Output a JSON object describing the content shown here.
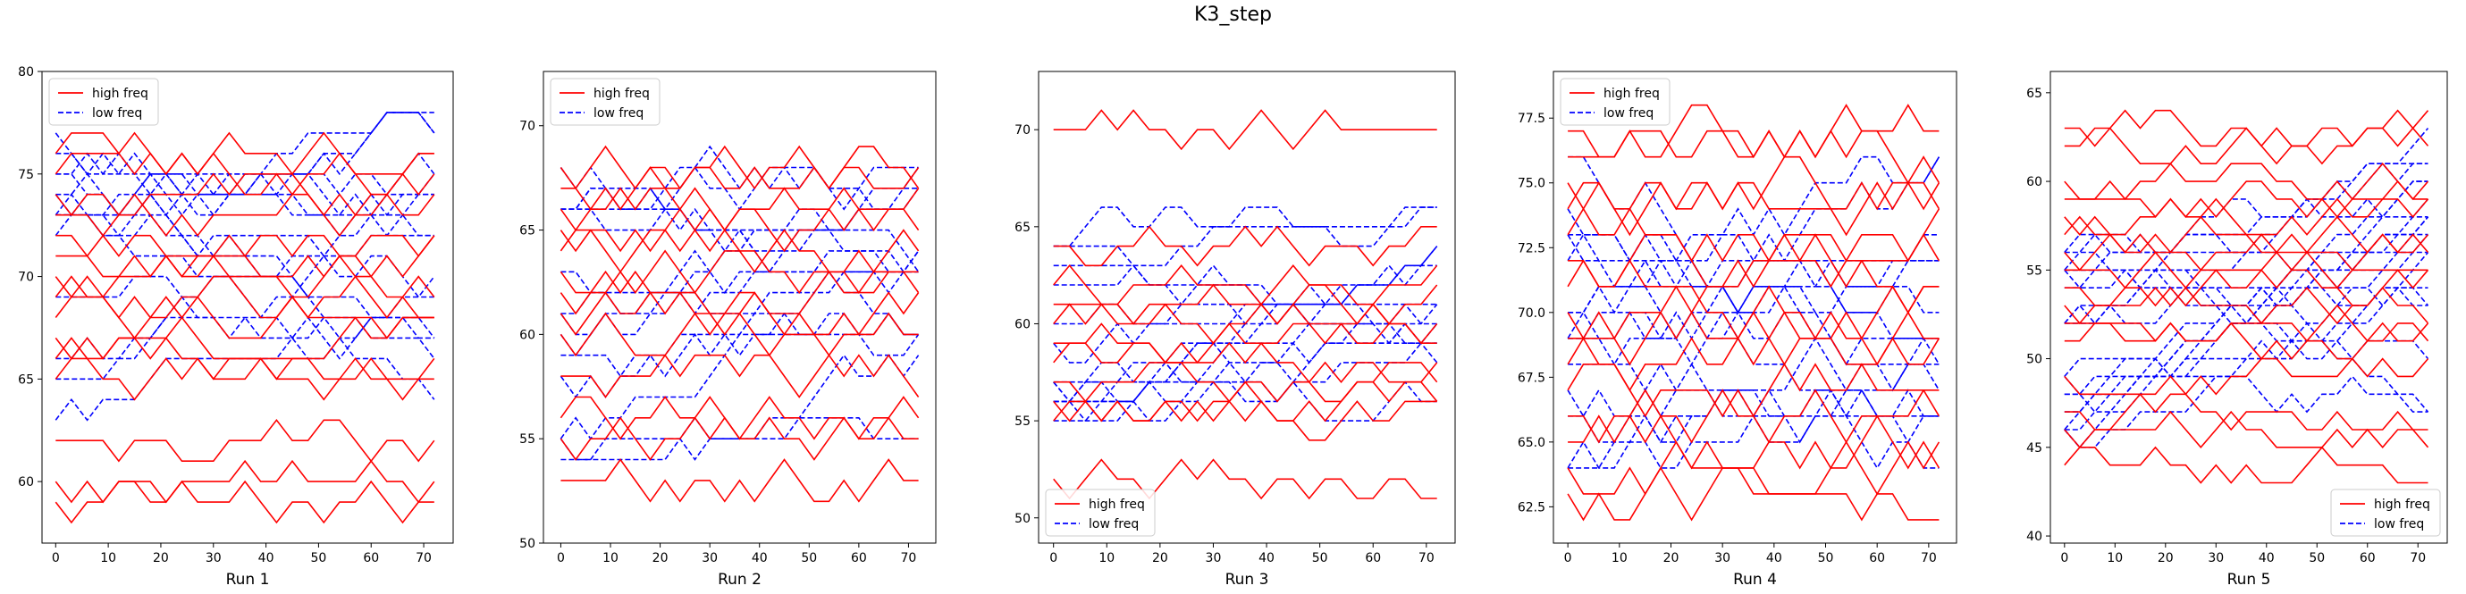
{
  "figure": {
    "title": "K3_step"
  },
  "chart_data": [
    {
      "type": "line",
      "xlabel": "Run 1",
      "xlim": [
        -2.6,
        75.6
      ],
      "ylim": [
        57.0,
        80.0
      ],
      "xticks": [
        0,
        10,
        20,
        30,
        40,
        50,
        60,
        70
      ],
      "yticks": [
        60,
        65,
        70,
        75,
        80
      ],
      "ytick_labels": [
        "60",
        "65",
        "70",
        "75",
        "80"
      ],
      "legend": {
        "loc": "upper-left",
        "entries": [
          {
            "label": "high freq",
            "color": "#ff0000",
            "style": "solid"
          },
          {
            "label": "low freq",
            "color": "#0000ff",
            "style": "dashed"
          }
        ]
      },
      "high_freq_levels": [
        59,
        60,
        62,
        65,
        66,
        67,
        68,
        69,
        70,
        71,
        72,
        73,
        74,
        75,
        76
      ],
      "low_freq_levels": [
        62,
        63,
        64,
        65,
        67,
        69,
        70,
        71,
        72,
        73,
        74,
        75,
        76,
        77,
        78
      ],
      "low_freq_start_range": [
        62,
        76
      ],
      "low_freq_end_range": [
        63,
        79
      ]
    },
    {
      "type": "line",
      "xlabel": "Run 2",
      "xlim": [
        -3.5,
        75.5
      ],
      "ylim": [
        50.0,
        72.6
      ],
      "xticks": [
        0,
        10,
        20,
        30,
        40,
        50,
        60,
        70
      ],
      "yticks": [
        50,
        55,
        60,
        65,
        70
      ],
      "ytick_labels": [
        "50",
        "55",
        "60",
        "65",
        "70"
      ],
      "legend": {
        "loc": "upper-left",
        "entries": [
          {
            "label": "high freq",
            "color": "#ff0000",
            "style": "solid"
          },
          {
            "label": "low freq",
            "color": "#0000ff",
            "style": "dashed"
          }
        ]
      },
      "high_freq_levels": [
        53,
        55,
        56,
        58,
        60,
        61,
        62,
        63,
        64,
        65,
        66,
        67,
        68
      ],
      "low_freq_levels": [
        52,
        55,
        57,
        59,
        61,
        62,
        63,
        64,
        65,
        66,
        67,
        68,
        69,
        70
      ],
      "low_freq_start_range": [
        54,
        68
      ],
      "low_freq_end_range": [
        57,
        71
      ]
    },
    {
      "type": "line",
      "xlabel": "Run 3",
      "xlim": [
        -2.8,
        75.4
      ],
      "ylim": [
        48.7,
        73.0
      ],
      "xticks": [
        0,
        10,
        20,
        30,
        40,
        50,
        60,
        70
      ],
      "yticks": [
        50,
        55,
        60,
        65,
        70
      ],
      "ytick_labels": [
        "50",
        "55",
        "60",
        "65",
        "70"
      ],
      "legend": {
        "loc": "lower-left",
        "entries": [
          {
            "label": "high freq",
            "color": "#ff0000",
            "style": "solid"
          },
          {
            "label": "low freq",
            "color": "#0000ff",
            "style": "dashed"
          }
        ]
      },
      "high_freq_levels": [
        52,
        55,
        56,
        57,
        58,
        59,
        60,
        61,
        62,
        64,
        70
      ],
      "low_freq_levels": [
        50,
        53,
        55,
        56,
        57,
        58,
        59,
        60,
        61,
        62,
        63,
        64,
        65
      ],
      "low_freq_start_range": [
        55,
        65
      ],
      "low_freq_end_range": [
        53,
        66
      ]
    },
    {
      "type": "line",
      "xlabel": "Run 4",
      "xlim": [
        -2.8,
        75.4
      ],
      "ylim": [
        61.1,
        79.3
      ],
      "xticks": [
        0,
        10,
        20,
        30,
        40,
        50,
        60,
        70
      ],
      "yticks": [
        62.5,
        65.0,
        67.5,
        70.0,
        72.5,
        75.0,
        77.5
      ],
      "ytick_labels": [
        "62.5",
        "65.0",
        "67.5",
        "70.0",
        "72.5",
        "75.0",
        "77.5"
      ],
      "legend": {
        "loc": "upper-left",
        "entries": [
          {
            "label": "high freq",
            "color": "#ff0000",
            "style": "solid"
          },
          {
            "label": "low freq",
            "color": "#0000ff",
            "style": "dashed"
          }
        ]
      },
      "high_freq_levels": [
        63,
        64,
        65,
        66,
        67,
        68,
        69,
        70,
        71,
        72,
        73,
        74,
        75,
        76,
        77
      ],
      "low_freq_levels": [
        63,
        64,
        65,
        66,
        67,
        68,
        69,
        70,
        71,
        72,
        73,
        74,
        75,
        76,
        77
      ],
      "low_freq_start_range": [
        63,
        76
      ],
      "low_freq_end_range": [
        64,
        77
      ]
    },
    {
      "type": "line",
      "xlabel": "Run 5",
      "xlim": [
        -2.8,
        75.8
      ],
      "ylim": [
        39.6,
        66.2
      ],
      "xticks": [
        0,
        10,
        20,
        30,
        40,
        50,
        60,
        70
      ],
      "yticks": [
        40,
        45,
        50,
        55,
        60,
        65
      ],
      "ytick_labels": [
        "40",
        "45",
        "50",
        "55",
        "60",
        "65"
      ],
      "legend": {
        "loc": "lower-right",
        "entries": [
          {
            "label": "high freq",
            "color": "#ff0000",
            "style": "solid"
          },
          {
            "label": "low freq",
            "color": "#0000ff",
            "style": "dashed"
          }
        ]
      },
      "high_freq_levels": [
        44,
        46,
        47,
        49,
        51,
        52,
        53,
        54,
        55,
        56,
        57,
        58,
        59,
        60,
        62,
        63
      ],
      "low_freq_levels": [
        41,
        45,
        47,
        48,
        49,
        50,
        51,
        52,
        53,
        54,
        55,
        56,
        57,
        58,
        59,
        60,
        61,
        62,
        63
      ],
      "low_freq_start_range": [
        43,
        57
      ],
      "low_freq_end_range": [
        46,
        64
      ]
    }
  ]
}
